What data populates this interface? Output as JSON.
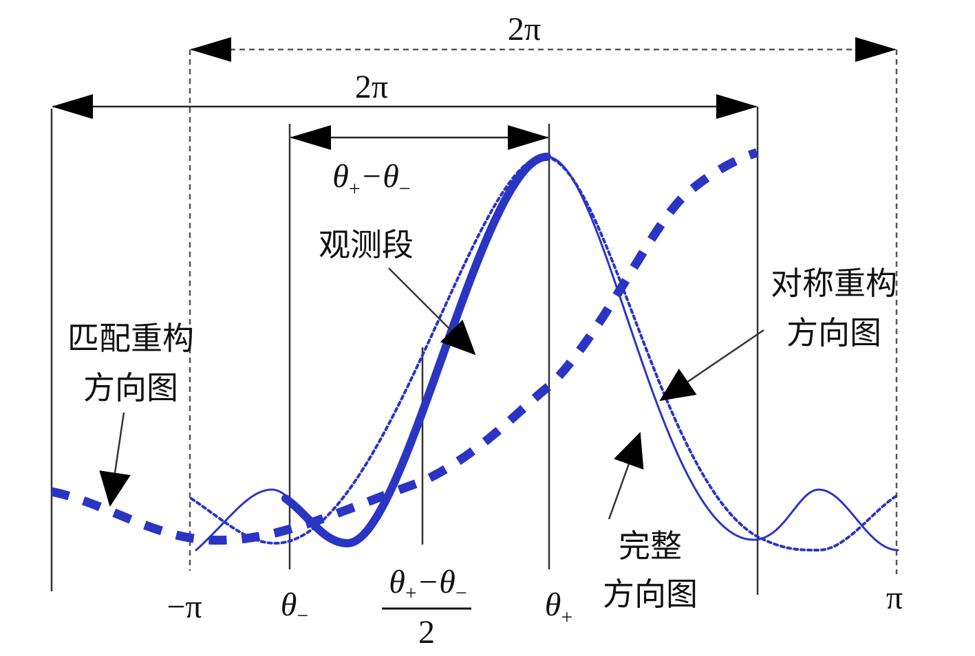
{
  "labels": {
    "outer_span": "2π",
    "inner_span": "2π",
    "observed_width": [
      "θ",
      "+",
      "−θ",
      "−"
    ],
    "observed_segment": "观测段",
    "symmetric_pattern": [
      "对称重构",
      "方向图"
    ],
    "matched_pattern": [
      "匹配重构",
      "方向图"
    ],
    "complete_pattern": [
      "完整",
      "方向图"
    ],
    "axis": {
      "neg_pi": "−π",
      "theta_minus": [
        "θ",
        "−"
      ],
      "midpoint_numerator": [
        "θ",
        "+",
        "−θ",
        "−"
      ],
      "midpoint_denominator": "2",
      "theta_plus": [
        "θ",
        "+"
      ],
      "pi": "π"
    }
  }
}
